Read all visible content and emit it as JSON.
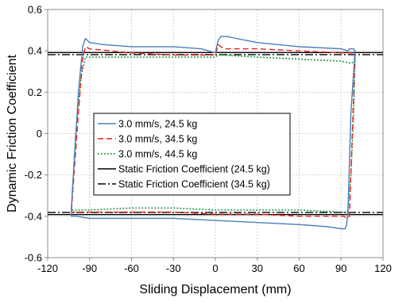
{
  "chart_data": {
    "type": "line",
    "title": "",
    "xlabel": "Sliding Displacement (mm)",
    "ylabel": "Dynamic Friction Coefficient",
    "xlim": [
      -120,
      120
    ],
    "ylim": [
      -0.6,
      0.6
    ],
    "x_ticks": [
      "-120",
      "-90",
      "-60",
      "-30",
      "0",
      "30",
      "60",
      "90",
      "120"
    ],
    "y_ticks": [
      "0.6",
      "0.4",
      "0.2",
      "0",
      "-0.2",
      "-0.4",
      "-0.6"
    ],
    "grid": true,
    "legend_position": "center-left",
    "series": [
      {
        "name": "3.0 mm/s, 24.5 kg",
        "color": "#4a7ebb",
        "dash": "solid",
        "x": [
          -103,
          -98,
          -95,
          -93,
          -90,
          -80,
          -60,
          -30,
          -10,
          0,
          2,
          4,
          6,
          8,
          15,
          30,
          60,
          90,
          95,
          96,
          97,
          98,
          99,
          100,
          97,
          95,
          94,
          93,
          90,
          80,
          60,
          30,
          0,
          -30,
          -60,
          -90,
          -100,
          -103,
          -103
        ],
        "y": [
          -0.36,
          0.2,
          0.42,
          0.46,
          0.44,
          0.43,
          0.42,
          0.42,
          0.41,
          0.39,
          0.45,
          0.47,
          0.47,
          0.47,
          0.46,
          0.44,
          0.42,
          0.41,
          0.4,
          0.41,
          0.41,
          0.41,
          0.41,
          0.4,
          0.1,
          -0.36,
          -0.44,
          -0.46,
          -0.46,
          -0.45,
          -0.44,
          -0.43,
          -0.42,
          -0.41,
          -0.41,
          -0.41,
          -0.4,
          -0.4,
          -0.36
        ]
      },
      {
        "name": "3.0 mm/s, 34.5 kg",
        "color": "#e8211c",
        "dash": "dashed",
        "x": [
          -103,
          -98,
          -95,
          -93,
          -90,
          -60,
          -30,
          -10,
          0,
          2,
          4,
          6,
          30,
          60,
          90,
          97,
          99,
          100,
          98,
          96,
          94,
          92,
          90,
          60,
          30,
          0,
          -30,
          -60,
          -90,
          -100,
          -103,
          -103
        ],
        "y": [
          -0.37,
          0.1,
          0.36,
          0.42,
          0.41,
          0.39,
          0.38,
          0.38,
          0.38,
          0.43,
          0.42,
          0.41,
          0.41,
          0.4,
          0.39,
          0.39,
          0.39,
          0.38,
          0.0,
          -0.4,
          -0.41,
          -0.4,
          -0.4,
          -0.4,
          -0.39,
          -0.39,
          -0.38,
          -0.38,
          -0.38,
          -0.38,
          -0.38,
          -0.37
        ]
      },
      {
        "name": "3.0 mm/s, 44.5 kg",
        "color": "#1f9a48",
        "dash": "dotted",
        "x": [
          -103,
          -100,
          -96,
          -93,
          -90,
          -60,
          -30,
          0,
          2,
          4,
          30,
          60,
          90,
          97,
          100,
          99,
          97,
          95,
          94,
          92,
          90,
          60,
          30,
          0,
          -30,
          -60,
          -90,
          -100,
          -103,
          -103
        ],
        "y": [
          -0.36,
          0.0,
          0.28,
          0.37,
          0.37,
          0.37,
          0.37,
          0.37,
          0.38,
          0.38,
          0.37,
          0.36,
          0.35,
          0.34,
          0.35,
          0.1,
          -0.2,
          -0.37,
          -0.38,
          -0.38,
          -0.38,
          -0.37,
          -0.37,
          -0.37,
          -0.36,
          -0.36,
          -0.37,
          -0.37,
          -0.37,
          -0.36
        ]
      },
      {
        "name": "Static Friction Coefficient (24.5 kg)",
        "color": "#000000",
        "dash": "solid",
        "x": [
          -120,
          120
        ],
        "y": [
          0.392,
          0.392
        ],
        "x2": [
          -120,
          120
        ],
        "y2": [
          -0.392,
          -0.392
        ]
      },
      {
        "name": "Static Friction Coefficient (34.5 kg)",
        "color": "#000000",
        "dash": "dashdot",
        "x": [
          -120,
          120
        ],
        "y": [
          0.382,
          0.382
        ],
        "x2": [
          -120,
          120
        ],
        "y2": [
          -0.382,
          -0.382
        ]
      }
    ]
  }
}
